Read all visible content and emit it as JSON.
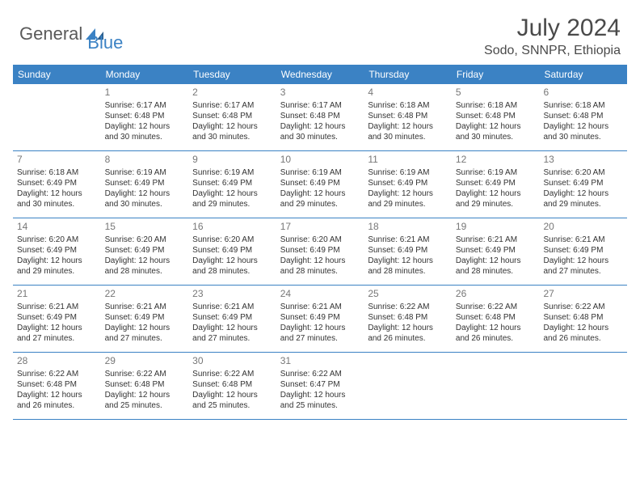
{
  "logo": {
    "text1": "General",
    "text2": "Blue"
  },
  "title": "July 2024",
  "location": "Sodo, SNNPR, Ethiopia",
  "colors": {
    "header_bg": "#3b82c4",
    "header_text": "#ffffff",
    "border": "#3b82c4",
    "day_num": "#777777",
    "body_text": "#333333",
    "logo_gray": "#5a5a5a",
    "logo_blue": "#3b82c4"
  },
  "daysOfWeek": [
    "Sunday",
    "Monday",
    "Tuesday",
    "Wednesday",
    "Thursday",
    "Friday",
    "Saturday"
  ],
  "weeks": [
    [
      {
        "num": "",
        "sunrise": "",
        "sunset": "",
        "daylight1": "",
        "daylight2": ""
      },
      {
        "num": "1",
        "sunrise": "Sunrise: 6:17 AM",
        "sunset": "Sunset: 6:48 PM",
        "daylight1": "Daylight: 12 hours",
        "daylight2": "and 30 minutes."
      },
      {
        "num": "2",
        "sunrise": "Sunrise: 6:17 AM",
        "sunset": "Sunset: 6:48 PM",
        "daylight1": "Daylight: 12 hours",
        "daylight2": "and 30 minutes."
      },
      {
        "num": "3",
        "sunrise": "Sunrise: 6:17 AM",
        "sunset": "Sunset: 6:48 PM",
        "daylight1": "Daylight: 12 hours",
        "daylight2": "and 30 minutes."
      },
      {
        "num": "4",
        "sunrise": "Sunrise: 6:18 AM",
        "sunset": "Sunset: 6:48 PM",
        "daylight1": "Daylight: 12 hours",
        "daylight2": "and 30 minutes."
      },
      {
        "num": "5",
        "sunrise": "Sunrise: 6:18 AM",
        "sunset": "Sunset: 6:48 PM",
        "daylight1": "Daylight: 12 hours",
        "daylight2": "and 30 minutes."
      },
      {
        "num": "6",
        "sunrise": "Sunrise: 6:18 AM",
        "sunset": "Sunset: 6:48 PM",
        "daylight1": "Daylight: 12 hours",
        "daylight2": "and 30 minutes."
      }
    ],
    [
      {
        "num": "7",
        "sunrise": "Sunrise: 6:18 AM",
        "sunset": "Sunset: 6:49 PM",
        "daylight1": "Daylight: 12 hours",
        "daylight2": "and 30 minutes."
      },
      {
        "num": "8",
        "sunrise": "Sunrise: 6:19 AM",
        "sunset": "Sunset: 6:49 PM",
        "daylight1": "Daylight: 12 hours",
        "daylight2": "and 30 minutes."
      },
      {
        "num": "9",
        "sunrise": "Sunrise: 6:19 AM",
        "sunset": "Sunset: 6:49 PM",
        "daylight1": "Daylight: 12 hours",
        "daylight2": "and 29 minutes."
      },
      {
        "num": "10",
        "sunrise": "Sunrise: 6:19 AM",
        "sunset": "Sunset: 6:49 PM",
        "daylight1": "Daylight: 12 hours",
        "daylight2": "and 29 minutes."
      },
      {
        "num": "11",
        "sunrise": "Sunrise: 6:19 AM",
        "sunset": "Sunset: 6:49 PM",
        "daylight1": "Daylight: 12 hours",
        "daylight2": "and 29 minutes."
      },
      {
        "num": "12",
        "sunrise": "Sunrise: 6:19 AM",
        "sunset": "Sunset: 6:49 PM",
        "daylight1": "Daylight: 12 hours",
        "daylight2": "and 29 minutes."
      },
      {
        "num": "13",
        "sunrise": "Sunrise: 6:20 AM",
        "sunset": "Sunset: 6:49 PM",
        "daylight1": "Daylight: 12 hours",
        "daylight2": "and 29 minutes."
      }
    ],
    [
      {
        "num": "14",
        "sunrise": "Sunrise: 6:20 AM",
        "sunset": "Sunset: 6:49 PM",
        "daylight1": "Daylight: 12 hours",
        "daylight2": "and 29 minutes."
      },
      {
        "num": "15",
        "sunrise": "Sunrise: 6:20 AM",
        "sunset": "Sunset: 6:49 PM",
        "daylight1": "Daylight: 12 hours",
        "daylight2": "and 28 minutes."
      },
      {
        "num": "16",
        "sunrise": "Sunrise: 6:20 AM",
        "sunset": "Sunset: 6:49 PM",
        "daylight1": "Daylight: 12 hours",
        "daylight2": "and 28 minutes."
      },
      {
        "num": "17",
        "sunrise": "Sunrise: 6:20 AM",
        "sunset": "Sunset: 6:49 PM",
        "daylight1": "Daylight: 12 hours",
        "daylight2": "and 28 minutes."
      },
      {
        "num": "18",
        "sunrise": "Sunrise: 6:21 AM",
        "sunset": "Sunset: 6:49 PM",
        "daylight1": "Daylight: 12 hours",
        "daylight2": "and 28 minutes."
      },
      {
        "num": "19",
        "sunrise": "Sunrise: 6:21 AM",
        "sunset": "Sunset: 6:49 PM",
        "daylight1": "Daylight: 12 hours",
        "daylight2": "and 28 minutes."
      },
      {
        "num": "20",
        "sunrise": "Sunrise: 6:21 AM",
        "sunset": "Sunset: 6:49 PM",
        "daylight1": "Daylight: 12 hours",
        "daylight2": "and 27 minutes."
      }
    ],
    [
      {
        "num": "21",
        "sunrise": "Sunrise: 6:21 AM",
        "sunset": "Sunset: 6:49 PM",
        "daylight1": "Daylight: 12 hours",
        "daylight2": "and 27 minutes."
      },
      {
        "num": "22",
        "sunrise": "Sunrise: 6:21 AM",
        "sunset": "Sunset: 6:49 PM",
        "daylight1": "Daylight: 12 hours",
        "daylight2": "and 27 minutes."
      },
      {
        "num": "23",
        "sunrise": "Sunrise: 6:21 AM",
        "sunset": "Sunset: 6:49 PM",
        "daylight1": "Daylight: 12 hours",
        "daylight2": "and 27 minutes."
      },
      {
        "num": "24",
        "sunrise": "Sunrise: 6:21 AM",
        "sunset": "Sunset: 6:49 PM",
        "daylight1": "Daylight: 12 hours",
        "daylight2": "and 27 minutes."
      },
      {
        "num": "25",
        "sunrise": "Sunrise: 6:22 AM",
        "sunset": "Sunset: 6:48 PM",
        "daylight1": "Daylight: 12 hours",
        "daylight2": "and 26 minutes."
      },
      {
        "num": "26",
        "sunrise": "Sunrise: 6:22 AM",
        "sunset": "Sunset: 6:48 PM",
        "daylight1": "Daylight: 12 hours",
        "daylight2": "and 26 minutes."
      },
      {
        "num": "27",
        "sunrise": "Sunrise: 6:22 AM",
        "sunset": "Sunset: 6:48 PM",
        "daylight1": "Daylight: 12 hours",
        "daylight2": "and 26 minutes."
      }
    ],
    [
      {
        "num": "28",
        "sunrise": "Sunrise: 6:22 AM",
        "sunset": "Sunset: 6:48 PM",
        "daylight1": "Daylight: 12 hours",
        "daylight2": "and 26 minutes."
      },
      {
        "num": "29",
        "sunrise": "Sunrise: 6:22 AM",
        "sunset": "Sunset: 6:48 PM",
        "daylight1": "Daylight: 12 hours",
        "daylight2": "and 25 minutes."
      },
      {
        "num": "30",
        "sunrise": "Sunrise: 6:22 AM",
        "sunset": "Sunset: 6:48 PM",
        "daylight1": "Daylight: 12 hours",
        "daylight2": "and 25 minutes."
      },
      {
        "num": "31",
        "sunrise": "Sunrise: 6:22 AM",
        "sunset": "Sunset: 6:47 PM",
        "daylight1": "Daylight: 12 hours",
        "daylight2": "and 25 minutes."
      },
      {
        "num": "",
        "sunrise": "",
        "sunset": "",
        "daylight1": "",
        "daylight2": ""
      },
      {
        "num": "",
        "sunrise": "",
        "sunset": "",
        "daylight1": "",
        "daylight2": ""
      },
      {
        "num": "",
        "sunrise": "",
        "sunset": "",
        "daylight1": "",
        "daylight2": ""
      }
    ]
  ]
}
